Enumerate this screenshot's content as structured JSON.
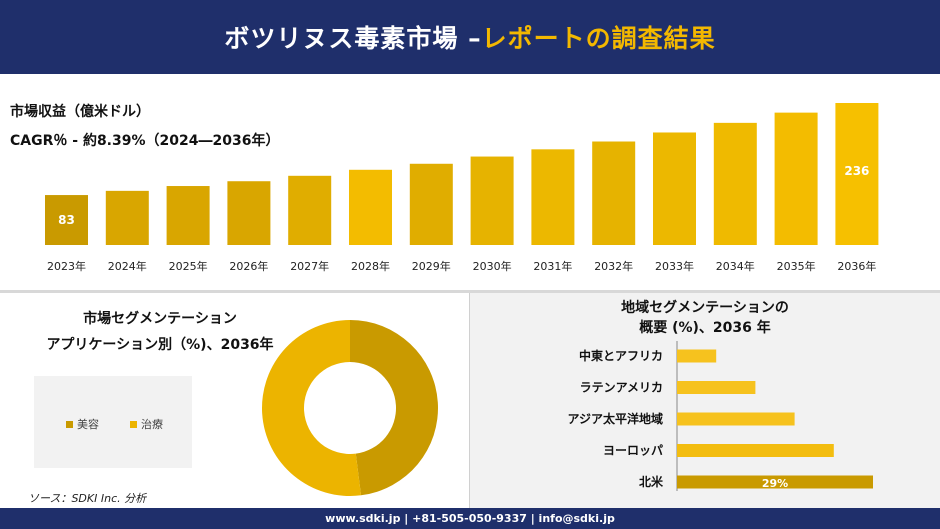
{
  "header": {
    "title_main": "ボツリヌス毒素市場 –",
    "title_accent": "レポートの調査結果"
  },
  "top": {
    "metric_label": "市場収益（億米ドル）",
    "cagr_label": "CAGR％ - 約8.39%（2024―2036年）"
  },
  "left": {
    "title_line1": "市場セグメンテーション",
    "title_line2": "アプリケーション別（%)、2036年",
    "source": "ソース：SDKI Inc. 分析"
  },
  "right": {
    "title_line1": "地域セグメンテーションの",
    "title_line2": "概要 (%)、2036 年"
  },
  "footer": {
    "text": "www.sdki.jp | +81-505-050-9337 | info@sdki.jp"
  },
  "chart_data": [
    {
      "type": "bar",
      "categories": [
        "2023年",
        "2024年",
        "2025年",
        "2026年",
        "2027年",
        "2028年",
        "2029年",
        "2030年",
        "2031年",
        "2032年",
        "2033年",
        "2034年",
        "2035年",
        "2036年"
      ],
      "values": [
        83,
        90,
        98,
        106,
        115,
        125,
        135,
        147,
        159,
        172,
        187,
        203,
        220,
        236
      ],
      "data_labels": {
        "0": "83",
        "13": "236"
      },
      "colors": [
        "#c99a00",
        "#d9a600",
        "#d9a600",
        "#d9a600",
        "#e0ad00",
        "#f3bc00",
        "#e0ad00",
        "#e6b300",
        "#ecb800",
        "#e6b300",
        "#ecb800",
        "#efba00",
        "#f3bc00",
        "#f6c000"
      ],
      "ylim": [
        0,
        236
      ]
    },
    {
      "type": "pie",
      "donut": true,
      "categories": [
        "美容",
        "治療"
      ],
      "values": [
        48,
        52
      ],
      "colors": [
        "#c99a00",
        "#ecb400"
      ],
      "legend": "center"
    },
    {
      "type": "bar",
      "orientation": "horizontal",
      "categories": [
        "中東とアフリカ",
        "ラテンアメリカ",
        "アジア太平洋地域",
        "ヨーロッパ",
        "北米"
      ],
      "values": [
        8,
        16,
        24,
        32,
        40
      ],
      "data_labels": {
        "4": "29%"
      },
      "colors": [
        "#f6c21e",
        "#f6c21e",
        "#f6c21e",
        "#f3bd10",
        "#c99a00"
      ],
      "grid": false
    }
  ]
}
